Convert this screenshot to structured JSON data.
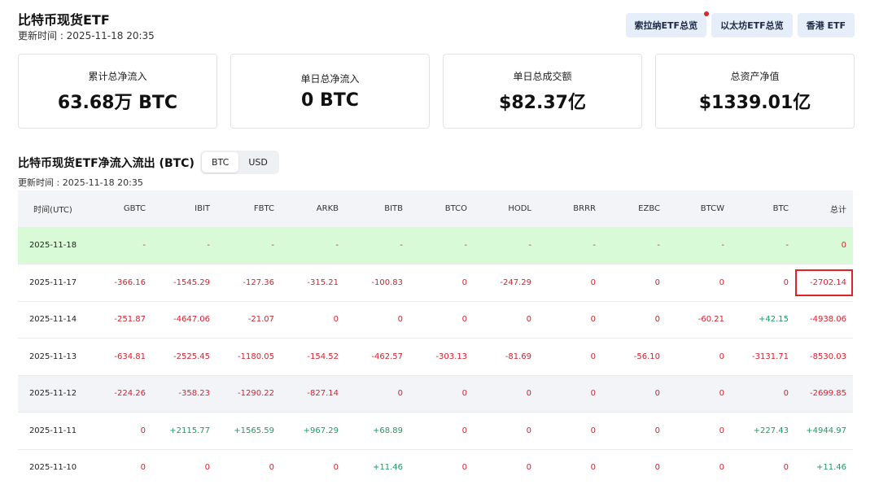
{
  "header": {
    "title": "比特币现货ETF",
    "updated": "更新时间 : 2025-11-18 20:35",
    "buttons": [
      "索拉纳ETF总览",
      "以太坊ETF总览",
      "香港 ETF"
    ]
  },
  "cards": [
    {
      "label": "累计总净流入",
      "value": "63.68万 BTC"
    },
    {
      "label": "单日总净流入",
      "value": "0 BTC"
    },
    {
      "label": "单日总成交额",
      "value": "$82.37亿"
    },
    {
      "label": "总资产净值",
      "value": "$1339.01亿"
    }
  ],
  "flows": {
    "title": "比特币现货ETF净流入流出 (BTC)",
    "toggle": [
      "BTC",
      "USD"
    ],
    "updated": "更新时间 : 2025-11-18 20:35",
    "columns": [
      "时间(UTC)",
      "GBTC",
      "IBIT",
      "FBTC",
      "ARKB",
      "BITB",
      "BTCO",
      "HODL",
      "BRRR",
      "EZBC",
      "BTCW",
      "BTC",
      "总计"
    ],
    "rows": [
      [
        "2025-11-18",
        "-",
        "-",
        "-",
        "-",
        "-",
        "-",
        "-",
        "-",
        "-",
        "-",
        "-",
        "0"
      ],
      [
        "2025-11-17",
        "-366.16",
        "-1545.29",
        "-127.36",
        "-315.21",
        "-100.83",
        "0",
        "-247.29",
        "0",
        "0",
        "0",
        "0",
        "-2702.14"
      ],
      [
        "2025-11-14",
        "-251.87",
        "-4647.06",
        "-21.07",
        "0",
        "0",
        "0",
        "0",
        "0",
        "0",
        "-60.21",
        "+42.15",
        "-4938.06"
      ],
      [
        "2025-11-13",
        "-634.81",
        "-2525.45",
        "-1180.05",
        "-154.52",
        "-462.57",
        "-303.13",
        "-81.69",
        "0",
        "-56.10",
        "0",
        "-3131.71",
        "-8530.03"
      ],
      [
        "2025-11-12",
        "-224.26",
        "-358.23",
        "-1290.22",
        "-827.14",
        "0",
        "0",
        "0",
        "0",
        "0",
        "0",
        "0",
        "-2699.85"
      ],
      [
        "2025-11-11",
        "0",
        "+2115.77",
        "+1565.59",
        "+967.29",
        "+68.89",
        "0",
        "0",
        "0",
        "0",
        "0",
        "+227.43",
        "+4944.97"
      ],
      [
        "2025-11-10",
        "0",
        "0",
        "0",
        "0",
        "+11.46",
        "0",
        "0",
        "0",
        "0",
        "0",
        "0",
        "+11.46"
      ]
    ],
    "highlighted_cell": {
      "row": 1,
      "column": "总计"
    }
  },
  "colors": {
    "negative": "#d8222e",
    "positive": "#1e9a63",
    "today_row": "#d9fad6",
    "highlight_border": "#e02424"
  }
}
